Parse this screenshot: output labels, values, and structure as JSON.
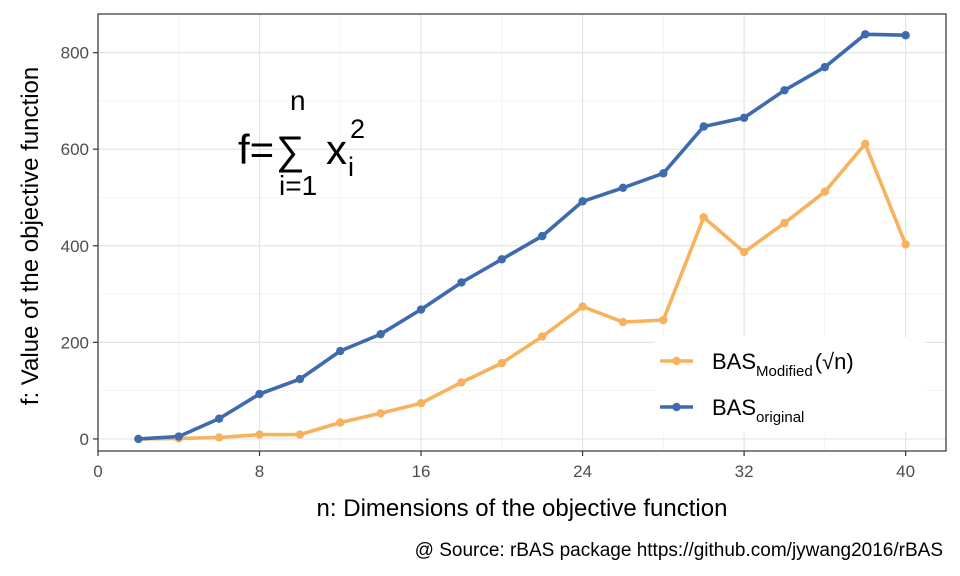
{
  "chart_data": {
    "type": "line",
    "xlabel": "n: Dimensions of the objective function",
    "ylabel": "f: Value of the objective function",
    "caption": "@ Source: rBAS package https://github.com/jywang2016/rBAS",
    "formula": {
      "lhs": "f=",
      "sum": "∑",
      "upper": "n",
      "lower": "i=1",
      "var": "x",
      "sub": "i",
      "sup": "2"
    },
    "xlim": [
      0,
      42
    ],
    "ylim": [
      -25,
      880
    ],
    "xticks": [
      "0",
      "8",
      "16",
      "24",
      "32",
      "40"
    ],
    "yticks": [
      "0",
      "200",
      "400",
      "600",
      "800"
    ],
    "grid": true,
    "legend_position": "bottom-right",
    "x": [
      2,
      4,
      6,
      8,
      10,
      12,
      14,
      16,
      18,
      20,
      22,
      24,
      26,
      28,
      30,
      32,
      34,
      36,
      38,
      40
    ],
    "series": [
      {
        "legend_main": "BAS",
        "legend_sub": "Modified",
        "legend_suffix": "(√n)",
        "color": "#F8B25E",
        "values": [
          0,
          1,
          3,
          9,
          9,
          34,
          53,
          74,
          117,
          157,
          212,
          274,
          242,
          246,
          459,
          387,
          447,
          512,
          611,
          403
        ]
      },
      {
        "legend_main": "BAS",
        "legend_sub": "original",
        "legend_suffix": "",
        "color": "#3D6BAD",
        "values": [
          0,
          5,
          42,
          93,
          124,
          182,
          217,
          268,
          324,
          372,
          420,
          492,
          520,
          550,
          647,
          665,
          722,
          770,
          838,
          836
        ]
      }
    ]
  }
}
